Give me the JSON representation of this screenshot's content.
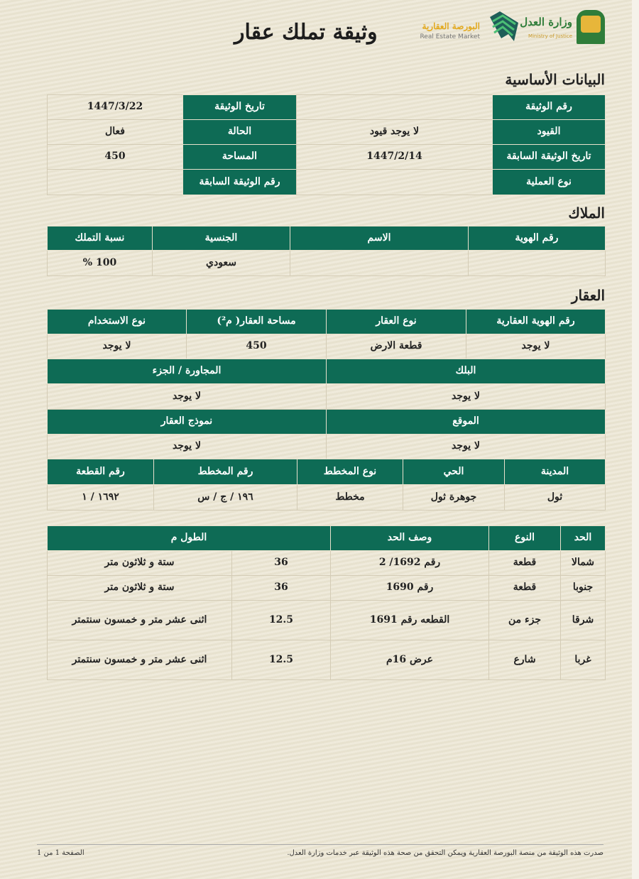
{
  "header": {
    "title": "وثيقة تملك عقار",
    "logo_rem_ar": "البورصة العقارية",
    "logo_rem_en": "Real Estate Market",
    "logo_moj_ar": "وزارة العدل",
    "logo_moj_en": "Ministry of Justice"
  },
  "basic": {
    "heading": "البيانات الأساسية",
    "rows": [
      {
        "l1": "رقم الوثيقة",
        "v1": "",
        "l2": "تاريخ الوثيقة",
        "v2": "1447/3/22"
      },
      {
        "l1": "القيود",
        "v1": "لا يوجد قيود",
        "l2": "الحالة",
        "v2": "فعال"
      },
      {
        "l1": "تاريخ الوثيقة السابقة",
        "v1": "1447/2/14",
        "l2": "المساحة",
        "v2": "450"
      },
      {
        "l1": "نوع العملية",
        "v1": "",
        "l2": "رقم الوثيقة السابقة",
        "v2": ""
      }
    ]
  },
  "owners": {
    "heading": "الملاك",
    "headers": [
      "رقم الهوية",
      "الاسم",
      "الجنسية",
      "نسبة التملك"
    ],
    "row": [
      "",
      "",
      "سعودي",
      "100 %"
    ]
  },
  "property": {
    "heading": "العقار",
    "block1": {
      "headers": [
        "رقم الهوية العقارية",
        "نوع العقار",
        "مساحة العقار( م²)",
        "نوع الاستخدام"
      ],
      "values": [
        "لا يوجد",
        "قطعة الارض",
        "450",
        "لا يوجد"
      ]
    },
    "block2": {
      "headers": [
        "البلك",
        "المجاورة / الجزء"
      ],
      "values": [
        "لا يوجد",
        "لا يوجد"
      ]
    },
    "block3": {
      "headers": [
        "الموقع",
        "نموذج العقار"
      ],
      "values": [
        "لا يوجد",
        "لا يوجد"
      ]
    },
    "block4": {
      "headers": [
        "المدينة",
        "الحي",
        "نوع المخطط",
        "رقم المخطط",
        "رقم القطعة"
      ],
      "values": [
        "ثول",
        "جوهرة ثول",
        "مخطط",
        "١٩٦ / ج / س",
        "١٦٩٢ / ١"
      ]
    }
  },
  "boundaries": {
    "headers": [
      "الحد",
      "النوع",
      "وصف الحد",
      "الطول م"
    ],
    "rows": [
      [
        "شمالا",
        "قطعة",
        "رقم 1692/ 2",
        "36",
        "ستة و ثلاثون متر"
      ],
      [
        "جنوبا",
        "قطعة",
        "رقم 1690",
        "36",
        "ستة و ثلاثون متر"
      ],
      [
        "شرقا",
        "جزء من",
        "القطعه رقم 1691",
        "12.5",
        "اثنى عشر متر و خمسون سنتمتر"
      ],
      [
        "غربا",
        "شارع",
        "عرض 16م",
        "12.5",
        "اثنى عشر متر و خمسون سنتمتر"
      ]
    ]
  },
  "footer": {
    "note": "صدرت هذه الوثيقة من منصة البورصة العقارية ويمكن التحقق من صحة هذه الوثيقة عبر خدمات وزارة العدل.",
    "page": "الصفحة 1 من 1"
  },
  "colors": {
    "green": "#0e6b55",
    "gold": "#d9a52b"
  }
}
